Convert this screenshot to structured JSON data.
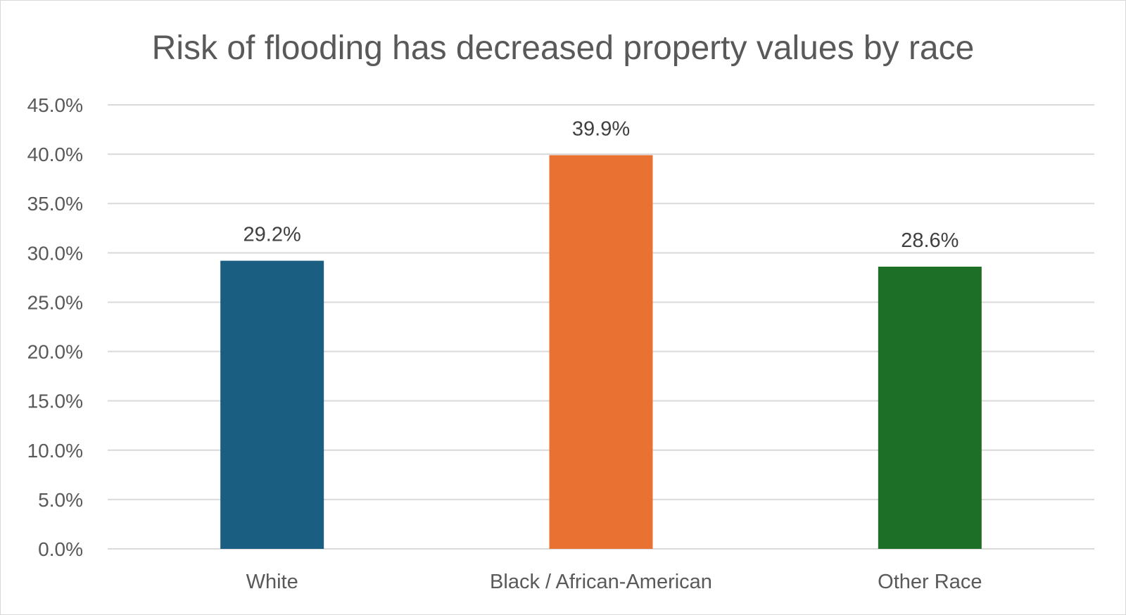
{
  "chart_data": {
    "type": "bar",
    "title": "Risk of flooding has decreased property values by race",
    "xlabel": "",
    "ylabel": "",
    "categories": [
      "White",
      "Black / African-American",
      "Other Race"
    ],
    "values": [
      29.2,
      39.9,
      28.6
    ],
    "value_labels": [
      "29.2%",
      "39.9%",
      "28.6%"
    ],
    "colors": [
      "#1a5f82",
      "#e97132",
      "#1d6f25"
    ],
    "ylim": [
      0,
      45
    ],
    "yticks": [
      0,
      5,
      10,
      15,
      20,
      25,
      30,
      35,
      40,
      45
    ],
    "ytick_labels": [
      "0.0%",
      "5.0%",
      "10.0%",
      "15.0%",
      "20.0%",
      "25.0%",
      "30.0%",
      "35.0%",
      "40.0%",
      "45.0%"
    ],
    "grid": true,
    "legend": "none"
  }
}
